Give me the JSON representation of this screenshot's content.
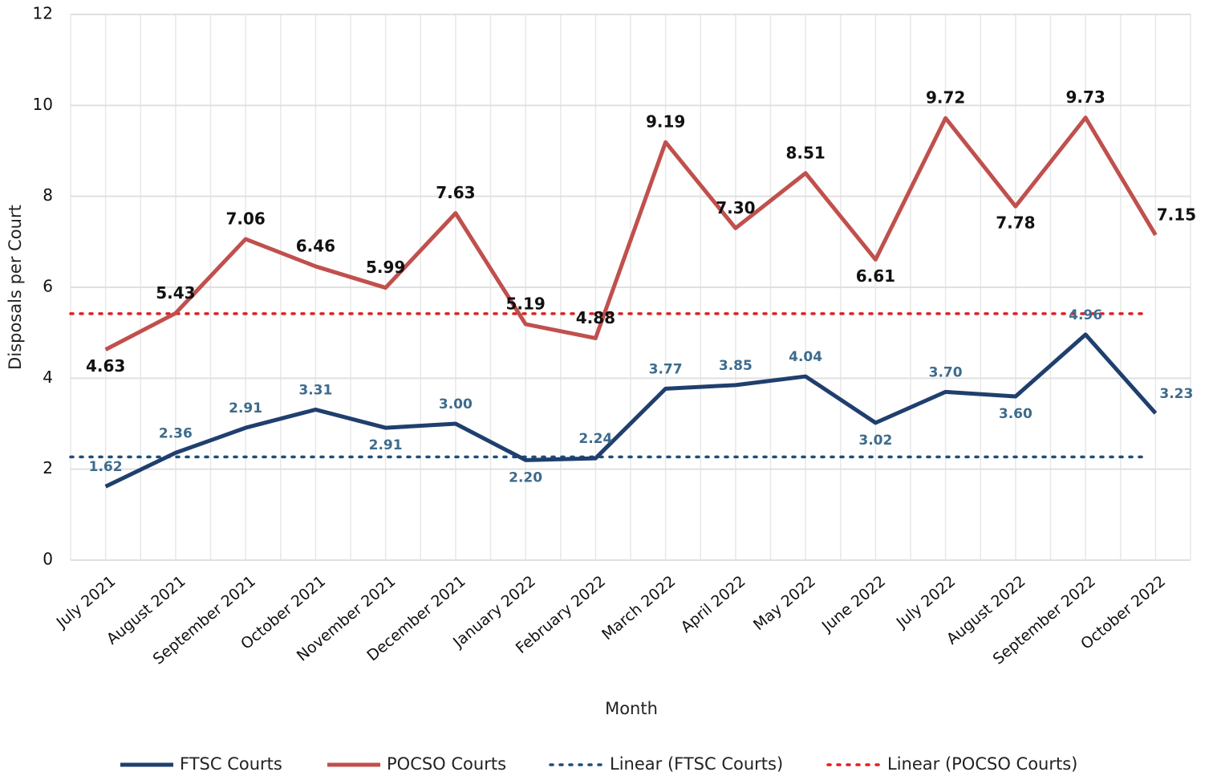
{
  "chart_data": {
    "type": "line",
    "x_label": "Month",
    "y_label": "Disposals per Court",
    "categories": [
      "July 2021",
      "August 2021",
      "September 2021",
      "October 2021",
      "November 2021",
      "December 2021",
      "January 2022",
      "February 2022",
      "March 2022",
      "April 2022",
      "May 2022",
      "June 2022",
      "July 2022",
      "August 2022",
      "September 2022",
      "October 2022"
    ],
    "series": [
      {
        "name": "FTSC Courts",
        "color": "#1f3f6e",
        "label_color": "#3d6b8c",
        "values": [
          1.62,
          2.36,
          2.91,
          3.31,
          2.91,
          3.0,
          2.2,
          2.24,
          3.77,
          3.85,
          4.04,
          3.02,
          3.7,
          3.6,
          4.96,
          3.23
        ],
        "value_labels": [
          "1.62",
          "2.36",
          "2.91",
          "3.31",
          "2.91",
          "3.00",
          "2.20",
          "2.24",
          "3.77",
          "3.85",
          "4.04",
          "3.02",
          "3.70",
          "3.60",
          "4.96",
          "3.23"
        ]
      },
      {
        "name": "POCSO Courts",
        "color": "#c0504d",
        "label_color": "#111111",
        "values": [
          4.63,
          5.43,
          7.06,
          6.46,
          5.99,
          7.63,
          5.19,
          4.88,
          9.19,
          7.3,
          8.51,
          6.61,
          9.72,
          7.78,
          9.73,
          7.15
        ],
        "value_labels": [
          "4.63",
          "5.43",
          "7.06",
          "6.46",
          "5.99",
          "7.63",
          "5.19",
          "4.88",
          "9.19",
          "7.30",
          "8.51",
          "6.61",
          "9.72",
          "7.78",
          "9.73",
          "7.15"
        ]
      }
    ],
    "trendlines": [
      {
        "name": "Linear (FTSC Courts)",
        "color": "#1f4e79",
        "values": [
          2.27,
          2.27
        ]
      },
      {
        "name": "Linear (POCSO Courts)",
        "color": "#e02020",
        "values": [
          5.42,
          5.42
        ]
      }
    ],
    "ylim": [
      0,
      12
    ],
    "yticks": [
      0,
      2,
      4,
      6,
      8,
      10,
      12
    ],
    "grid": true,
    "legend": "bottom"
  }
}
